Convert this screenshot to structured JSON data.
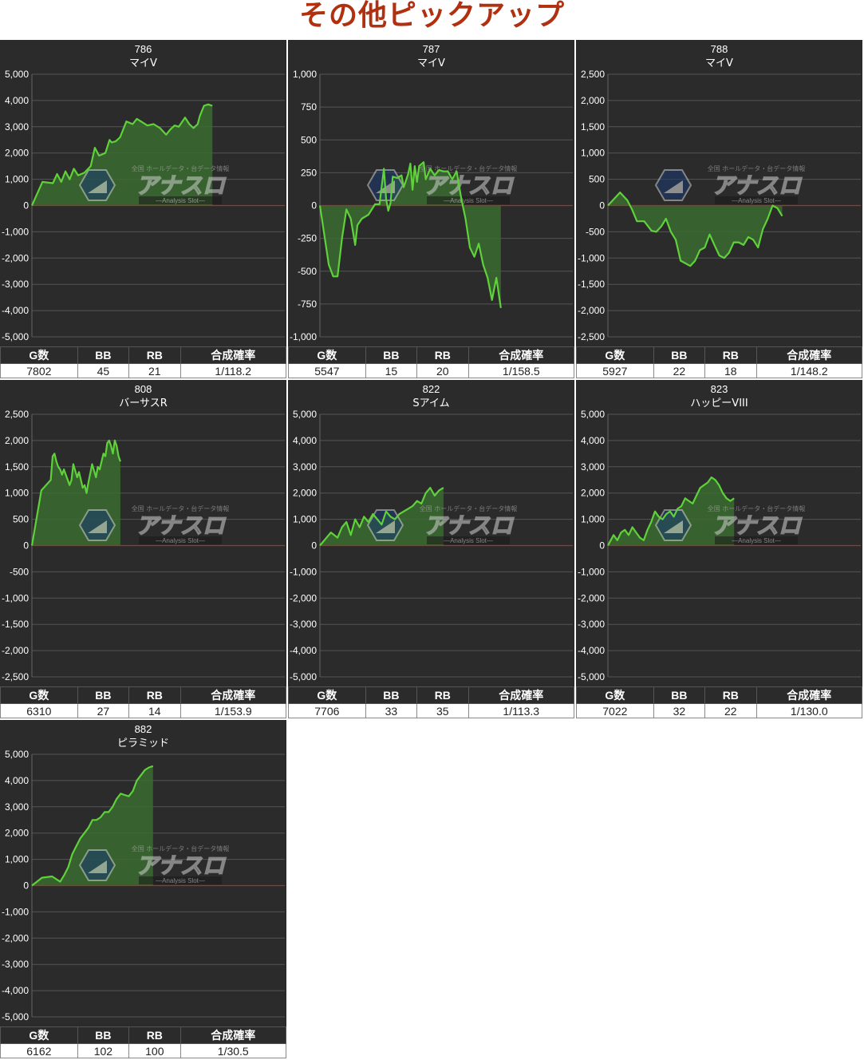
{
  "page": {
    "title": "その他ピックアップ"
  },
  "stats_headers": {
    "games": "G数",
    "bb": "BB",
    "rb": "RB",
    "rate": "合成確率"
  },
  "watermark": {
    "main": "アナスロ",
    "top": "全国 ホールデータ・台データ情報",
    "sub": "Analysis Slot"
  },
  "colors": {
    "background": "#2b2b2b",
    "line": "#5fd13a",
    "fill": "#3a6b2f",
    "zero_line": "#cc2222",
    "grid": "#555555",
    "title": "#b03010"
  },
  "charts": [
    {
      "machine_no": "786",
      "machine_name": "マイV",
      "stats": {
        "games": "7802",
        "bb": "45",
        "rb": "21",
        "rate": "1/118.2"
      },
      "chart_data": {
        "type": "area",
        "ylim": [
          -5000,
          5000
        ],
        "ticks": [
          "5,000",
          "4,000",
          "3,000",
          "2,000",
          "1,000",
          "0",
          "-1,000",
          "-2,000",
          "-3,000",
          "-4,000",
          "-5,000"
        ],
        "x": [
          0,
          5,
          10,
          12,
          14,
          16,
          18,
          20,
          22,
          25,
          28,
          30,
          32,
          35,
          37,
          38,
          40,
          42,
          45,
          48,
          50,
          52,
          55,
          58,
          61,
          64,
          66,
          68,
          70,
          73,
          75,
          77,
          79,
          80,
          82,
          84,
          86,
          88,
          90,
          92,
          94
        ],
        "y": [
          0,
          900,
          850,
          1200,
          900,
          1300,
          1000,
          1400,
          1150,
          1250,
          1500,
          2200,
          1900,
          2000,
          2500,
          2400,
          2450,
          2600,
          3200,
          3100,
          3300,
          3200,
          3050,
          3100,
          2950,
          2700,
          2900,
          3050,
          3000,
          3350,
          3100,
          2950,
          3100,
          3400,
          3800,
          3850,
          3800,
          3800,
          3800,
          3800,
          3800
        ]
      }
    },
    {
      "machine_no": "787",
      "machine_name": "マイV",
      "stats": {
        "games": "5547",
        "bb": "15",
        "rb": "20",
        "rate": "1/158.5"
      },
      "chart_data": {
        "type": "area",
        "ylim": [
          -1000,
          1000
        ],
        "ticks": [
          "1,000",
          "750",
          "500",
          "250",
          "0",
          "-250",
          "-500",
          "-750",
          "-1,000"
        ],
        "x": [
          0,
          4,
          6,
          8,
          10,
          12,
          14,
          16,
          17,
          19,
          22,
          25,
          27,
          29,
          30,
          31,
          32,
          33,
          35,
          37,
          38,
          40,
          41,
          42,
          43,
          44,
          45,
          47,
          48,
          50,
          52,
          54,
          56,
          58,
          60,
          62,
          64,
          66,
          68,
          70,
          72,
          74,
          76,
          78,
          80,
          82,
          84,
          86,
          88,
          90,
          92,
          94
        ],
        "y": [
          0,
          -450,
          -540,
          -540,
          -250,
          -30,
          -100,
          -300,
          -150,
          -100,
          -70,
          10,
          10,
          280,
          50,
          -40,
          20,
          220,
          210,
          230,
          140,
          240,
          320,
          120,
          300,
          180,
          300,
          330,
          200,
          280,
          230,
          270,
          260,
          260,
          200,
          260,
          60,
          -100,
          -320,
          -390,
          -290,
          -450,
          -550,
          -720,
          -550,
          -780,
          -780,
          -780,
          -780,
          -780,
          -780,
          -780
        ]
      }
    },
    {
      "machine_no": "788",
      "machine_name": "マイV",
      "stats": {
        "games": "5927",
        "bb": "22",
        "rb": "18",
        "rate": "1/148.2"
      },
      "chart_data": {
        "type": "area",
        "ylim": [
          -2500,
          2500
        ],
        "ticks": [
          "2,500",
          "2,000",
          "1,500",
          "1,000",
          "500",
          "0",
          "-500",
          "-1,000",
          "-1,500",
          "-2,000",
          "-2,500"
        ],
        "x": [
          0,
          5,
          8,
          10,
          12,
          15,
          18,
          20,
          22,
          24,
          26,
          28,
          30,
          32,
          34,
          36,
          38,
          40,
          42,
          44,
          46,
          48,
          50,
          52,
          54,
          56,
          58,
          60,
          62,
          64,
          66,
          68,
          70,
          72,
          74,
          76,
          78,
          80,
          82,
          84,
          86,
          88,
          90,
          92,
          94
        ],
        "y": [
          0,
          250,
          100,
          -80,
          -300,
          -300,
          -480,
          -500,
          -400,
          -250,
          -500,
          -650,
          -1050,
          -1100,
          -1150,
          -1050,
          -850,
          -800,
          -550,
          -750,
          -950,
          -1000,
          -900,
          -700,
          -700,
          -750,
          -600,
          -650,
          -800,
          -450,
          -250,
          0,
          -50,
          -200,
          -200,
          -200,
          -200,
          -200,
          -200,
          -200,
          -200,
          -200,
          -200,
          -200,
          -200
        ]
      }
    },
    {
      "machine_no": "808",
      "machine_name": "バーサスR",
      "stats": {
        "games": "6310",
        "bb": "27",
        "rb": "14",
        "rate": "1/153.9"
      },
      "chart_data": {
        "type": "area",
        "ylim": [
          -2500,
          2500
        ],
        "ticks": [
          "2,500",
          "2,000",
          "1,500",
          "1,000",
          "500",
          "0",
          "-500",
          "-1,000",
          "-1,500",
          "-2,000",
          "-2,500"
        ],
        "x": [
          0,
          5,
          10,
          11,
          12,
          13,
          14,
          15,
          16,
          17,
          18,
          19,
          20,
          21,
          22,
          24,
          25,
          26,
          27,
          28,
          29,
          30,
          32,
          34,
          35,
          36,
          37,
          38,
          39,
          40,
          41,
          42,
          43,
          44,
          45,
          46,
          47,
          48,
          50,
          52,
          54,
          56,
          58,
          60,
          62,
          64,
          66,
          68,
          70,
          72,
          74,
          76,
          78,
          80,
          82,
          84,
          86,
          88,
          90,
          92,
          94
        ],
        "y": [
          0,
          1050,
          1250,
          1700,
          1750,
          1600,
          1500,
          1450,
          1350,
          1450,
          1350,
          1250,
          1150,
          1250,
          1550,
          1300,
          1400,
          1250,
          1100,
          1150,
          1000,
          1200,
          1550,
          1300,
          1500,
          1450,
          1600,
          1750,
          1700,
          1950,
          2000,
          1900,
          1750,
          2000,
          1900,
          1700,
          1600,
          1600,
          1600,
          1600,
          1600,
          1600,
          1600,
          1600,
          1600,
          1600,
          1600,
          1600,
          1600,
          1600,
          1600,
          1600,
          1600,
          1600,
          1600,
          1600,
          1600,
          1600,
          1600,
          1600,
          1600
        ]
      }
    },
    {
      "machine_no": "822",
      "machine_name": "Sアイム",
      "stats": {
        "games": "7706",
        "bb": "33",
        "rb": "35",
        "rate": "1/113.3"
      },
      "chart_data": {
        "type": "area",
        "ylim": [
          -5000,
          5000
        ],
        "ticks": [
          "5,000",
          "4,000",
          "3,000",
          "2,000",
          "1,000",
          "0",
          "-1,000",
          "-2,000",
          "-3,000",
          "-4,000",
          "-5,000"
        ],
        "x": [
          0,
          5,
          8,
          10,
          12,
          14,
          16,
          18,
          20,
          22,
          24,
          26,
          28,
          30,
          32,
          34,
          36,
          38,
          40,
          42,
          44,
          46,
          48,
          50,
          52,
          54,
          56,
          58,
          60,
          62,
          64,
          66,
          68,
          70,
          72,
          74,
          76,
          78,
          80,
          82,
          84,
          86,
          88,
          90,
          92,
          94
        ],
        "y": [
          0,
          500,
          300,
          700,
          900,
          400,
          1000,
          700,
          1100,
          900,
          1200,
          1000,
          800,
          1300,
          1100,
          1000,
          1200,
          1300,
          1400,
          1500,
          1700,
          1600,
          2000,
          2200,
          1900,
          2100,
          2200,
          2200,
          2200,
          2200,
          2200,
          2200,
          2200,
          2200,
          2200,
          2200,
          2200,
          2200,
          2200,
          2200,
          2200,
          2200,
          2200,
          2200,
          2200,
          2200
        ]
      }
    },
    {
      "machine_no": "823",
      "machine_name": "ハッピーVIII",
      "stats": {
        "games": "7022",
        "bb": "32",
        "rb": "22",
        "rate": "1/130.0"
      },
      "chart_data": {
        "type": "area",
        "ylim": [
          -5000,
          5000
        ],
        "ticks": [
          "5,000",
          "4,000",
          "3,000",
          "2,000",
          "1,000",
          "0",
          "-1,000",
          "-2,000",
          "-3,000",
          "-4,000",
          "-5,000"
        ],
        "x": [
          0,
          3,
          5,
          7,
          9,
          11,
          13,
          15,
          17,
          19,
          21,
          23,
          25,
          27,
          29,
          31,
          33,
          35,
          37,
          39,
          41,
          43,
          45,
          47,
          49,
          51,
          53,
          55,
          57,
          59,
          61,
          63,
          65,
          67,
          69,
          71,
          73,
          75,
          77,
          79,
          81,
          83,
          85,
          87,
          89,
          94
        ],
        "y": [
          0,
          400,
          200,
          500,
          600,
          400,
          700,
          500,
          300,
          200,
          600,
          900,
          1300,
          1100,
          1000,
          1200,
          1300,
          1100,
          1400,
          1500,
          1800,
          1700,
          1600,
          1900,
          2200,
          2300,
          2400,
          2600,
          2500,
          2300,
          2000,
          1800,
          1700,
          1800,
          1800,
          1800,
          1800,
          1800,
          1800,
          1800,
          1800,
          1800,
          1800,
          1800,
          1800,
          1800
        ]
      }
    },
    {
      "machine_no": "882",
      "machine_name": "ピラミッド",
      "stats": {
        "games": "6162",
        "bb": "102",
        "rb": "100",
        "rate": "1/30.5"
      },
      "chart_data": {
        "type": "area",
        "ylim": [
          -5000,
          5000
        ],
        "ticks": [
          "5,000",
          "4,000",
          "3,000",
          "2,000",
          "1,000",
          "0",
          "-1,000",
          "-2,000",
          "-3,000",
          "-4,000",
          "-5,000"
        ],
        "x": [
          0,
          5,
          10,
          14,
          16,
          18,
          20,
          22,
          24,
          26,
          28,
          30,
          32,
          34,
          36,
          38,
          40,
          42,
          44,
          46,
          48,
          50,
          52,
          54,
          56,
          58,
          60,
          62,
          64,
          66,
          68,
          70,
          72,
          74,
          76,
          78,
          80,
          82,
          84,
          86,
          88,
          90,
          92,
          94
        ],
        "y": [
          0,
          300,
          350,
          150,
          400,
          700,
          1200,
          1500,
          1800,
          2000,
          2200,
          2500,
          2500,
          2600,
          2800,
          2800,
          3000,
          3300,
          3500,
          3450,
          3400,
          3600,
          4000,
          4200,
          4400,
          4500,
          4550,
          4550,
          4550,
          4550,
          4550,
          4550,
          4550,
          4550,
          4550,
          4550,
          4550,
          4550,
          4550,
          4550,
          4550,
          4550,
          4550,
          4550
        ]
      }
    }
  ]
}
